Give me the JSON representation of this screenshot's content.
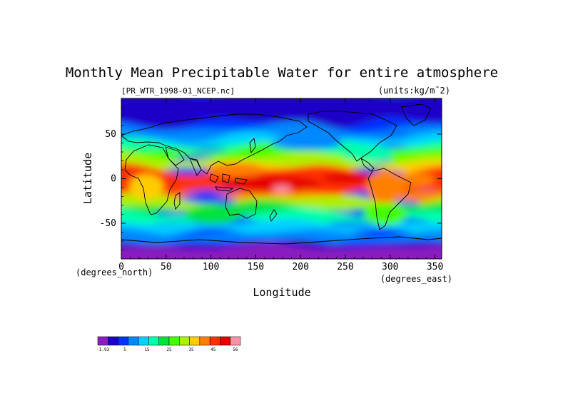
{
  "chart_data": {
    "type": "heatmap",
    "title": "Monthly Mean Precipitable Water for entire atmosphere",
    "subtitle_left": "[PR_WTR_1998-01_NCEP.nc]",
    "subtitle_right": "(units:kg/m¯2)",
    "xlabel": "Longitude",
    "ylabel": "Latitude",
    "x_units": "(degrees_east)",
    "y_units": "(degrees_north)",
    "xlim": [
      0,
      357.5
    ],
    "ylim": [
      -90,
      90
    ],
    "xticks": [
      0,
      50,
      100,
      150,
      200,
      250,
      300,
      350
    ],
    "yticks": [
      -50,
      0,
      50
    ],
    "colorbar": {
      "labels": [
        "-1.93",
        "5",
        "15",
        "25",
        "35",
        "45",
        "56"
      ],
      "colors": [
        "#8a1ebf",
        "#1a00c8",
        "#0033ff",
        "#0088ff",
        "#00d2ff",
        "#00ffaa",
        "#00e33c",
        "#44ff00",
        "#aef000",
        "#ffcc00",
        "#ff8000",
        "#ff3000",
        "#e60000",
        "#ff8fa8"
      ]
    }
  }
}
